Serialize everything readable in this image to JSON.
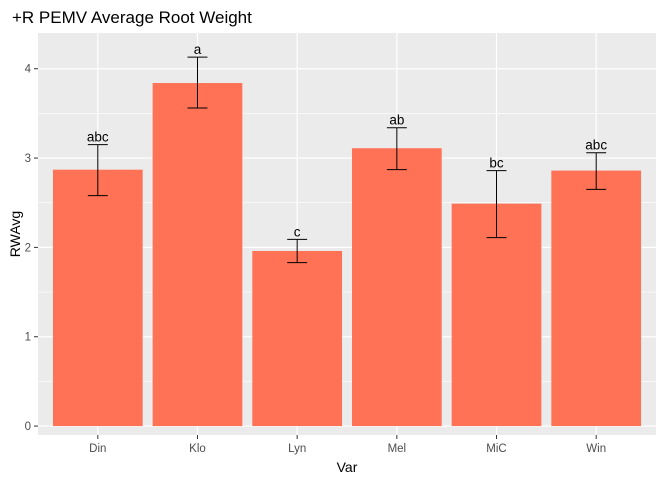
{
  "chart_data": {
    "type": "bar",
    "title": "+R PEMV Average Root Weight",
    "xlabel": "Var",
    "ylabel": "RWAvg",
    "categories": [
      "Din",
      "Klo",
      "Lyn",
      "Mel",
      "MiC",
      "Win"
    ],
    "values": [
      2.87,
      3.84,
      1.96,
      3.11,
      2.49,
      2.86
    ],
    "error_low": [
      2.58,
      3.56,
      1.83,
      2.87,
      2.11,
      2.65
    ],
    "error_high": [
      3.15,
      4.13,
      2.09,
      3.34,
      2.86,
      3.06
    ],
    "significance_labels": [
      "abc",
      "a",
      "c",
      "ab",
      "bc",
      "abc"
    ],
    "yticks": [
      0,
      1,
      2,
      3,
      4
    ],
    "ylim": [
      -0.1,
      4.4
    ],
    "grid": true,
    "legend": "none",
    "colors": {
      "bar": "#ff7256",
      "panel": "#ebebeb",
      "grid_major": "#ffffff",
      "error_bar": "#000000"
    }
  }
}
